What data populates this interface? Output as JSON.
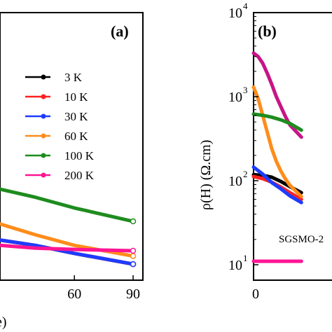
{
  "chart_data": [
    {
      "panel": "(a)",
      "type": "line",
      "xlabel": "e)",
      "x_ticks": [
        "60",
        "90"
      ],
      "xlim": [
        22,
        95
      ],
      "ylim": [
        0,
        1
      ],
      "legend_position": "right",
      "series": [
        {
          "name": "3 K",
          "color": "#000000",
          "x": [
            22,
            40,
            60,
            90
          ],
          "y": [
            0.15,
            0.13,
            0.1,
            0.06
          ]
        },
        {
          "name": "10 K",
          "color": "#ff2020",
          "x": [
            22,
            40,
            60,
            90
          ],
          "y": [
            0.15,
            0.13,
            0.1,
            0.06
          ]
        },
        {
          "name": "30 K",
          "color": "#1e3cff",
          "x": [
            22,
            40,
            60,
            90
          ],
          "y": [
            0.15,
            0.13,
            0.1,
            0.06
          ]
        },
        {
          "name": "60 K",
          "color": "#ff8c1a",
          "x": [
            22,
            40,
            60,
            90
          ],
          "y": [
            0.21,
            0.17,
            0.13,
            0.09
          ]
        },
        {
          "name": "100 K",
          "color": "#1e8c1e",
          "x": [
            22,
            40,
            60,
            90
          ],
          "y": [
            0.34,
            0.31,
            0.27,
            0.22
          ]
        },
        {
          "name": "200 K",
          "color": "#ff1493",
          "x": [
            22,
            40,
            60,
            90
          ],
          "y": [
            0.13,
            0.12,
            0.115,
            0.11
          ]
        }
      ]
    },
    {
      "panel": "(b)",
      "type": "line",
      "ylabel": "ρ(H) (Ω.cm)",
      "yscale": "log",
      "ylim": [
        10,
        10000
      ],
      "y_ticks": [
        "10",
        "10",
        "10",
        "10"
      ],
      "y_tick_exponents": [
        "1",
        "2",
        "3",
        "4"
      ],
      "x_ticks": [
        "0"
      ],
      "xlim": [
        0,
        20
      ],
      "annotation": "SGSMO-2",
      "series": [
        {
          "color": "#000000",
          "x": [
            0,
            2,
            4,
            6,
            8,
            10.5
          ],
          "y": [
            118,
            116,
            110,
            98,
            85,
            72
          ]
        },
        {
          "color": "#ff2020",
          "x": [
            0,
            2,
            4,
            6,
            8,
            10.5
          ],
          "y": [
            112,
            106,
            96,
            84,
            72,
            60
          ]
        },
        {
          "color": "#1e3cff",
          "x": [
            0,
            2,
            4,
            6,
            8,
            10.5
          ],
          "y": [
            145,
            120,
            95,
            80,
            66,
            55
          ]
        },
        {
          "color": "#ff8c1a",
          "x": [
            0,
            1,
            2,
            3,
            4,
            5,
            6,
            7,
            8,
            10.5
          ],
          "y": [
            1300,
            950,
            600,
            380,
            240,
            170,
            130,
            105,
            88,
            65
          ]
        },
        {
          "color": "#c71585",
          "x": [
            0,
            1,
            2,
            3,
            4,
            5,
            6,
            7,
            8,
            10.5
          ],
          "y": [
            3300,
            3000,
            2500,
            1900,
            1400,
            1000,
            760,
            580,
            460,
            330
          ]
        },
        {
          "color": "#1e8c1e",
          "x": [
            0,
            2,
            4,
            6,
            8,
            10.5
          ],
          "y": [
            620,
            600,
            570,
            530,
            480,
            400
          ]
        },
        {
          "color": "#ff1493",
          "x": [
            0,
            2,
            4,
            6,
            8,
            10.5
          ],
          "y": [
            11,
            11,
            11,
            11,
            11,
            11
          ]
        }
      ]
    }
  ]
}
